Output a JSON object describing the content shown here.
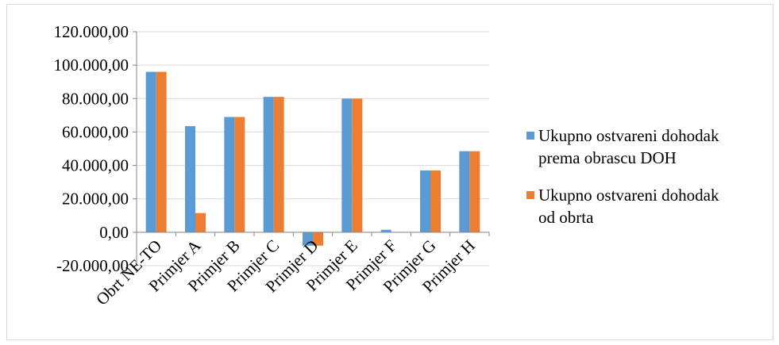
{
  "chart_data": {
    "type": "bar",
    "categories": [
      "Obrt NE-TO",
      "Primjer A",
      "Primjer B",
      "Primjer C",
      "Primjer D",
      "Primjer E",
      "Primjer F",
      "Primjer G",
      "Primjer H"
    ],
    "series": [
      {
        "name": "Ukupno ostvareni dohodak prema obrascu DOH",
        "values": [
          96000,
          63500,
          69000,
          81000,
          -8000,
          80000,
          1500,
          37000,
          48500
        ],
        "color": "#5b9bd5"
      },
      {
        "name": "Ukupno ostvareni dohodak od obrta",
        "values": [
          96000,
          11500,
          69000,
          81000,
          -8000,
          80000,
          0,
          37000,
          48500
        ],
        "color": "#ed7d31"
      }
    ],
    "ylim": [
      -20000,
      120000
    ],
    "yticks": [
      {
        "value": 120000,
        "label": "120.000,00",
        "color": "#000000"
      },
      {
        "value": 100000,
        "label": "100.000,00",
        "color": "#000000"
      },
      {
        "value": 80000,
        "label": "80.000,00",
        "color": "#000000"
      },
      {
        "value": 60000,
        "label": "60.000,00",
        "color": "#000000"
      },
      {
        "value": 40000,
        "label": "40.000,00",
        "color": "#000000"
      },
      {
        "value": 20000,
        "label": "20.000,00",
        "color": "#000000"
      },
      {
        "value": 0,
        "label": "0,00",
        "color": "#000000"
      },
      {
        "value": -20000,
        "label": "-20.000,00",
        "color": "#ff0000"
      }
    ],
    "legend": {
      "placement": "right",
      "entries": [
        {
          "lines": [
            "Ukupno ostvareni dohodak",
            "prema obrascu DOH"
          ],
          "color": "#5b9bd5"
        },
        {
          "lines": [
            "Ukupno ostvareni dohodak",
            "od obrta"
          ],
          "color": "#ed7d31"
        }
      ]
    },
    "grid": true,
    "gridColor": "#d9d9d9",
    "axisColor": "#868686"
  }
}
